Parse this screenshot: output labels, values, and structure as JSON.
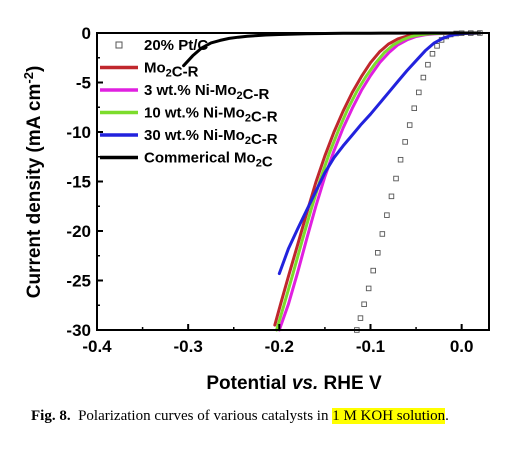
{
  "chart_data": {
    "type": "line",
    "title": "",
    "xlabel": {
      "text": "Potential ",
      "italic": "vs.",
      "rest": " RHE V"
    },
    "ylabel": {
      "base": "Current density (mA cm",
      "sup": "-2",
      "close": ")"
    },
    "xlim": [
      -0.4,
      0.03
    ],
    "ylim": [
      -30,
      0
    ],
    "xticks": [
      -0.4,
      -0.3,
      -0.2,
      -0.1,
      0.0
    ],
    "xtick_labels": [
      "-0.4",
      "-0.3",
      "-0.2",
      "-0.1",
      "0.0"
    ],
    "yticks": [
      0,
      -5,
      -10,
      -15,
      -20,
      -25,
      -30
    ],
    "ytick_labels": [
      "0",
      "-5",
      "-10",
      "-15",
      "-20",
      "-25",
      "-30"
    ],
    "grid": false,
    "legend": "top-left",
    "series": [
      {
        "key": "pt",
        "name": "20% Pt/C",
        "name_parts": [
          {
            "t": "20% Pt/C"
          }
        ],
        "color": "#555555",
        "marker": "square-open",
        "x": [
          -0.115,
          -0.111,
          -0.107,
          -0.102,
          -0.097,
          -0.092,
          -0.087,
          -0.082,
          -0.077,
          -0.072,
          -0.067,
          -0.062,
          -0.057,
          -0.052,
          -0.047,
          -0.042,
          -0.037,
          -0.032,
          -0.027,
          -0.022,
          -0.017,
          -0.012,
          -0.006,
          0.0,
          0.01,
          0.02
        ],
        "y": [
          -30,
          -28.8,
          -27.4,
          -25.8,
          -24.0,
          -22.2,
          -20.3,
          -18.4,
          -16.5,
          -14.7,
          -12.8,
          -11.0,
          -9.3,
          -7.6,
          -6.0,
          -4.5,
          -3.2,
          -2.1,
          -1.3,
          -0.7,
          -0.35,
          -0.15,
          -0.05,
          -0.02,
          -0.01,
          0.0
        ]
      },
      {
        "key": "mo2cr",
        "name": "Mo2C-R",
        "name_parts": [
          {
            "t": "Mo"
          },
          {
            "t": "2",
            "sub": true
          },
          {
            "t": "C-R"
          }
        ],
        "color": "#c0272d",
        "marker": "line",
        "x": [
          -0.205,
          -0.198,
          -0.19,
          -0.18,
          -0.17,
          -0.16,
          -0.15,
          -0.14,
          -0.13,
          -0.12,
          -0.11,
          -0.1,
          -0.09,
          -0.08,
          -0.07,
          -0.06,
          -0.05,
          -0.04,
          -0.02,
          0.0,
          0.02
        ],
        "y": [
          -29.5,
          -27.2,
          -24.6,
          -21.4,
          -18.2,
          -15.1,
          -12.4,
          -10.0,
          -7.9,
          -6.0,
          -4.4,
          -3.0,
          -1.9,
          -1.1,
          -0.6,
          -0.3,
          -0.15,
          -0.08,
          -0.03,
          -0.01,
          0.0
        ]
      },
      {
        "key": "ni3",
        "name": "3 wt.%  Ni-Mo2C-R",
        "name_parts": [
          {
            "t": "3 wt.%  Ni-Mo"
          },
          {
            "t": "2",
            "sub": true
          },
          {
            "t": "C-R"
          }
        ],
        "color": "#e020e0",
        "marker": "line",
        "x": [
          -0.2,
          -0.19,
          -0.18,
          -0.17,
          -0.16,
          -0.15,
          -0.14,
          -0.13,
          -0.12,
          -0.11,
          -0.1,
          -0.09,
          -0.08,
          -0.07,
          -0.06,
          -0.05,
          -0.04,
          -0.03,
          -0.02,
          0.0,
          0.02
        ],
        "y": [
          -30,
          -27.4,
          -24.2,
          -20.8,
          -17.5,
          -14.5,
          -11.9,
          -9.6,
          -7.6,
          -5.8,
          -4.3,
          -3.0,
          -2.0,
          -1.2,
          -0.7,
          -0.35,
          -0.18,
          -0.09,
          -0.04,
          -0.01,
          0.0
        ]
      },
      {
        "key": "ni10",
        "name": "10 wt.% Ni-Mo2C-R",
        "name_parts": [
          {
            "t": "10 wt.% Ni-Mo"
          },
          {
            "t": "2",
            "sub": true
          },
          {
            "t": "C-R"
          }
        ],
        "color": "#7cdc2c",
        "marker": "line",
        "x": [
          -0.203,
          -0.195,
          -0.185,
          -0.175,
          -0.165,
          -0.155,
          -0.145,
          -0.135,
          -0.125,
          -0.115,
          -0.105,
          -0.095,
          -0.085,
          -0.075,
          -0.065,
          -0.055,
          -0.045,
          -0.035,
          -0.02,
          0.0,
          0.02
        ],
        "y": [
          -30,
          -27.5,
          -24.3,
          -21.0,
          -17.8,
          -14.8,
          -12.1,
          -9.8,
          -7.7,
          -5.9,
          -4.4,
          -3.1,
          -2.0,
          -1.2,
          -0.7,
          -0.35,
          -0.17,
          -0.08,
          -0.03,
          -0.01,
          0.0
        ]
      },
      {
        "key": "ni30",
        "name": "30 wt.% Ni-Mo2C-R",
        "name_parts": [
          {
            "t": "30 wt.% Ni-Mo"
          },
          {
            "t": "2",
            "sub": true
          },
          {
            "t": "C-R"
          }
        ],
        "color": "#2222dd",
        "marker": "line",
        "x": [
          -0.2,
          -0.19,
          -0.18,
          -0.17,
          -0.16,
          -0.15,
          -0.14,
          -0.13,
          -0.12,
          -0.11,
          -0.1,
          -0.09,
          -0.08,
          -0.07,
          -0.06,
          -0.05,
          -0.04,
          -0.03,
          -0.02,
          -0.01,
          0.0,
          0.02
        ],
        "y": [
          -24.3,
          -21.8,
          -19.8,
          -17.9,
          -16.0,
          -14.1,
          -12.6,
          -11.4,
          -10.3,
          -9.2,
          -8.2,
          -7.1,
          -6.0,
          -4.9,
          -3.8,
          -2.8,
          -1.8,
          -1.0,
          -0.5,
          -0.2,
          -0.05,
          0.0
        ]
      },
      {
        "key": "comm",
        "name": "Commerical Mo2C",
        "name_parts": [
          {
            "t": "Commerical Mo"
          },
          {
            "t": "2",
            "sub": true
          },
          {
            "t": "C"
          }
        ],
        "color": "#000000",
        "marker": "line",
        "x": [
          -0.305,
          -0.295,
          -0.285,
          -0.275,
          -0.265,
          -0.255,
          -0.245,
          -0.235,
          -0.225,
          -0.215,
          -0.2,
          -0.185,
          -0.17,
          -0.15,
          -0.13,
          -0.1,
          -0.07,
          -0.04,
          0.0,
          0.02
        ],
        "y": [
          -3.3,
          -2.3,
          -1.5,
          -1.0,
          -0.75,
          -0.55,
          -0.42,
          -0.33,
          -0.26,
          -0.2,
          -0.15,
          -0.11,
          -0.08,
          -0.05,
          -0.03,
          -0.02,
          -0.01,
          -0.005,
          0.0,
          0.0
        ]
      }
    ]
  },
  "caption": {
    "label": "Fig. 8.",
    "text": "Polarization curves of various catalysts in",
    "highlight": "1 M KOH solution",
    "end": "."
  }
}
